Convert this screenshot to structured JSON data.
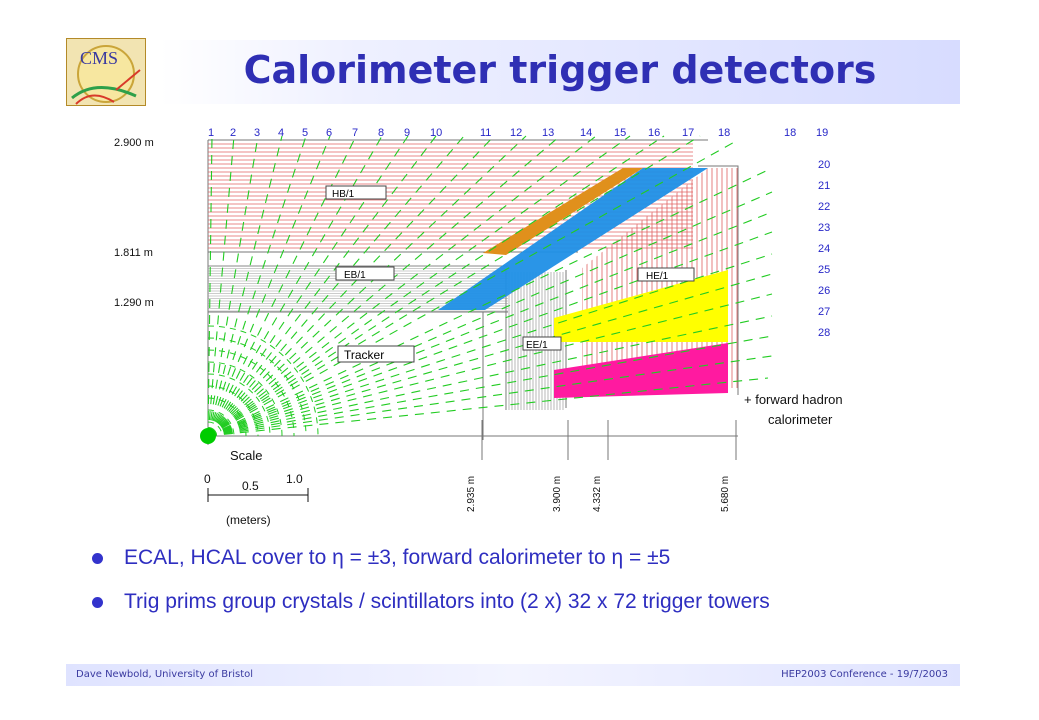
{
  "title": "Calorimeter trigger detectors",
  "logo": {
    "text": "CMS"
  },
  "diagram": {
    "tower_numbers": [
      "1",
      "2",
      "3",
      "4",
      "5",
      "6",
      "7",
      "8",
      "9",
      "10",
      "11",
      "12",
      "13",
      "14",
      "15",
      "16",
      "17",
      "18",
      "19",
      "20",
      "21",
      "22",
      "23",
      "24",
      "25",
      "26",
      "27",
      "28"
    ],
    "radii_labels": [
      "2.900 m",
      "1.811 m",
      "1.290 m"
    ],
    "z_labels": [
      "2.935 m",
      "3.900 m",
      "4.332 m",
      "5.680 m"
    ],
    "region_labels": {
      "hb": "HB/1",
      "eb": "EB/1",
      "ee": "EE/1",
      "he": "HE/1",
      "tracker": "Tracker"
    },
    "forward_note": [
      "+ forward hadron",
      "calorimeter"
    ],
    "scale": {
      "title": "Scale",
      "tick0": "0",
      "tick05": "0.5",
      "tick1": "1.0",
      "unit": "(meters)"
    },
    "colors": {
      "tower_lines": "#22cc22",
      "hcal_red": "#e06060",
      "orange": "#e0901c",
      "blue": "#1f8fe6",
      "yellow": "#ffff00",
      "magenta": "#ff1aa0",
      "tower_numbers": "#2727c8"
    }
  },
  "bullets": [
    "ECAL, HCAL cover to η = ±3, forward calorimeter to η = ±5",
    "Trig prims group crystals / scintillators into (2 x) 32 x 72 trigger towers"
  ],
  "footer": {
    "left": "Dave Newbold, University of Bristol",
    "right": "HEP2003 Conference - 19/7/2003"
  }
}
